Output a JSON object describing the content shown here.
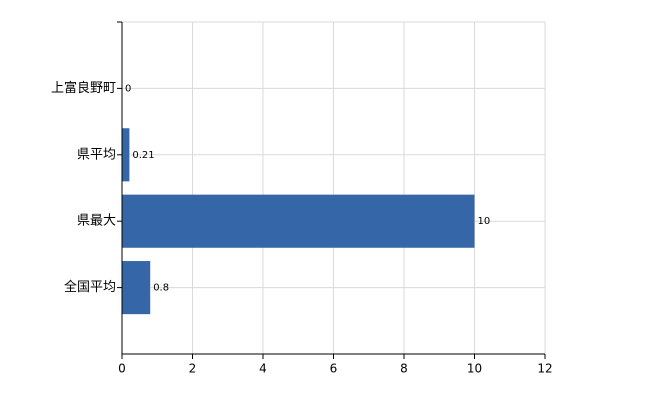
{
  "chart_data": {
    "type": "hbar",
    "categories": [
      "上富良野町",
      "県平均",
      "県最大",
      "全国平均"
    ],
    "values": [
      0,
      0.21,
      10,
      0.8
    ],
    "color": "#3567a8",
    "xlim": [
      0,
      12
    ],
    "xticks": [
      0,
      2,
      4,
      6,
      8,
      10,
      12
    ],
    "grid": true
  }
}
